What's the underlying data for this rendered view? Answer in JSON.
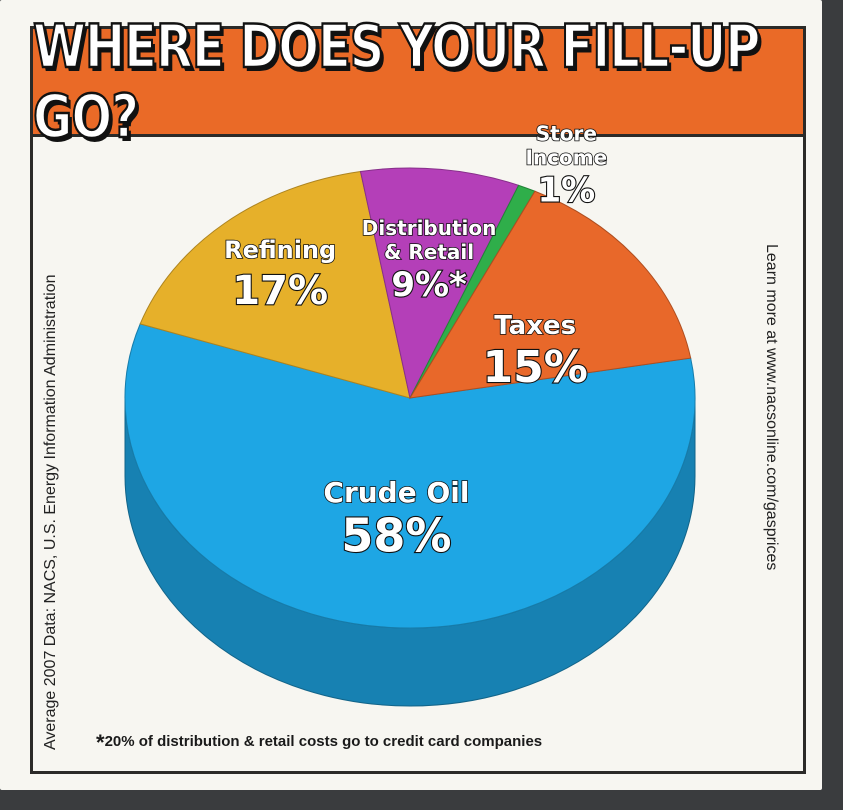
{
  "title": "WHERE DOES YOUR FILL-UP GO?",
  "source_note": "Average 2007 Data: NACS, U.S. Energy Information Administration",
  "learn_more": "Learn more at www.nacsonline.com/gasprices",
  "footnote_star": "*",
  "footnote_text": "20% of distribution & retail costs go to credit card companies",
  "chart_data": {
    "type": "pie",
    "title": "WHERE DOES YOUR FILL-UP GO?",
    "slices": [
      {
        "label": "Crude Oil",
        "value": 58,
        "value_label": "58%",
        "color": "#1ea6e4"
      },
      {
        "label": "Refining",
        "value": 17,
        "value_label": "17%",
        "color": "#e6b02a"
      },
      {
        "label": "Distribution & Retail",
        "label_lines": [
          "Distribution",
          "& Retail"
        ],
        "value": 9,
        "value_label": "9%*",
        "color": "#b43fb8"
      },
      {
        "label": "Store Income",
        "label_lines": [
          "Store",
          "Income"
        ],
        "value": 1,
        "value_label": "1%",
        "color": "#2fae4a"
      },
      {
        "label": "Taxes",
        "value": 15,
        "value_label": "15%",
        "color": "#e8682a"
      }
    ]
  }
}
